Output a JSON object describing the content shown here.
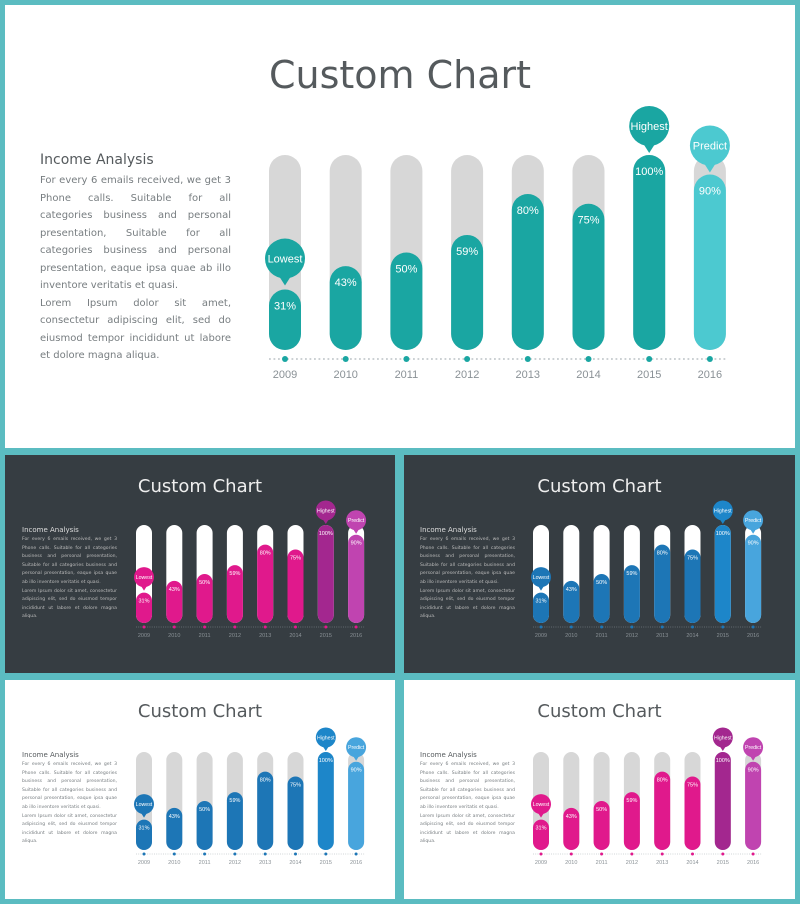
{
  "main": {
    "title": "Custom Chart",
    "heading": "Income Analysis",
    "paragraph1": "For every 6 emails received, we get 3 Phone calls. Suitable for all categories business and personal presentation, Suitable for all categories business and personal presentation, eaque ipsa quae ab illo inventore veritatis et quasi.",
    "paragraph2": "Lorem Ipsum dolor sit amet, consectetur adipiscing elit, sed do eiusmod tempor incididunt ut labore et dolore magna aliqua."
  },
  "variants": [
    {
      "id": "teal",
      "colors": {
        "bar": "#1aa6a2",
        "highlight": "#1aa6a2",
        "predict": "#4cc9d0",
        "track": "#d7d7d7",
        "dot": "#1aa6a2"
      }
    },
    {
      "id": "magenta-dark",
      "colors": {
        "bar": "#e0198c",
        "highlight": "#a3278f",
        "predict": "#c044b0",
        "track": "#ffffff",
        "dot": "#e0198c"
      }
    },
    {
      "id": "blue-dark",
      "colors": {
        "bar": "#1d76b6",
        "highlight": "#1d86c9",
        "predict": "#48a5dd",
        "track": "#ffffff",
        "dot": "#1d76b6"
      }
    },
    {
      "id": "blue-light",
      "colors": {
        "bar": "#1d76b6",
        "highlight": "#1d86c9",
        "predict": "#48a5dd",
        "track": "#d7d7d7",
        "dot": "#1d76b6"
      }
    },
    {
      "id": "magenta-light",
      "colors": {
        "bar": "#e0198c",
        "highlight": "#a3278f",
        "predict": "#c044b0",
        "track": "#d7d7d7",
        "dot": "#e0198c"
      }
    }
  ],
  "chart_data": {
    "type": "bar",
    "categories": [
      "2009",
      "2010",
      "2011",
      "2012",
      "2013",
      "2014",
      "2015",
      "2016"
    ],
    "values": [
      31,
      43,
      50,
      59,
      80,
      75,
      100,
      90
    ],
    "value_labels": [
      "31%",
      "43%",
      "50%",
      "59%",
      "80%",
      "75%",
      "100%",
      "90%"
    ],
    "ylim": [
      0,
      100
    ],
    "annotations": [
      {
        "category": "2009",
        "label": "Lowest"
      },
      {
        "category": "2015",
        "label": "Highest"
      },
      {
        "category": "2016",
        "label": "Predict"
      }
    ],
    "legend": "none",
    "grid": false
  }
}
